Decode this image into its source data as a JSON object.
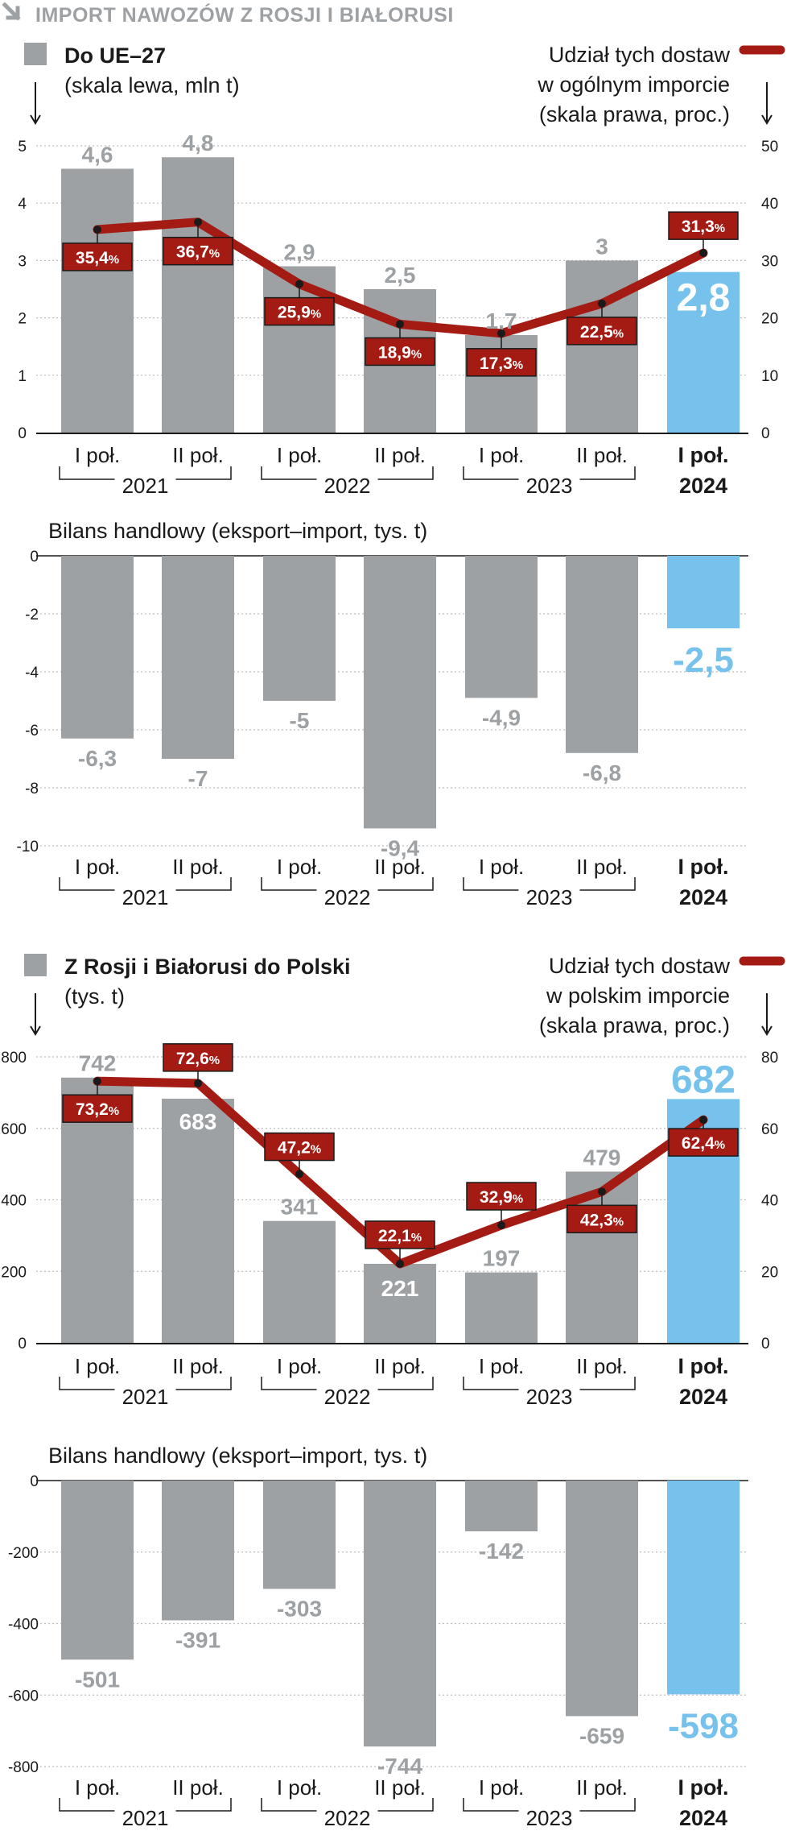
{
  "header": {
    "title": "IMPORT NAWOZÓW Z ROSJI I BIAŁORUSI"
  },
  "colors": {
    "bar": "#9da1a4",
    "bar_highlight": "#76c2ec",
    "line": "#a41b14",
    "label_gray": "#9da1a4",
    "label_blue": "#76c2ec",
    "grid": "#bdbdbd"
  },
  "x_labels": {
    "halves": [
      "I poł.",
      "II poł.",
      "I poł.",
      "II poł.",
      "I poł.",
      "II poł.",
      "I poł."
    ],
    "years": [
      "2021",
      "2022",
      "2023",
      "2024"
    ]
  },
  "chart_data": [
    {
      "type": "bar",
      "legend_bar": "Do UE–27",
      "legend_bar_sub": "(skala lewa, mln t)",
      "legend_line": [
        "Udział tych dostaw",
        "w ogólnym imporcie",
        "(skala prawa, proc.)"
      ],
      "categories": [
        "I poł. 2021",
        "II poł. 2021",
        "I poł. 2022",
        "II poł. 2022",
        "I poł. 2023",
        "II poł. 2023",
        "I poł. 2024"
      ],
      "values": [
        4.6,
        4.8,
        2.9,
        2.5,
        1.7,
        3,
        2.8
      ],
      "value_labels": [
        "4,6",
        "4,8",
        "2,9",
        "2,5",
        "1,7",
        "3",
        "2,8"
      ],
      "ylim": [
        0,
        5
      ],
      "yticks": [
        "0",
        "1",
        "2",
        "3",
        "4",
        "5"
      ],
      "line_series": {
        "values": [
          35.4,
          36.7,
          25.9,
          18.9,
          17.3,
          22.5,
          31.3
        ],
        "labels": [
          "35,4",
          "36,7",
          "25,9",
          "18,9",
          "17,3",
          "22,5",
          "31,3"
        ],
        "unit": "%",
        "ylim": [
          0,
          50
        ],
        "yticks": [
          "0",
          "10",
          "20",
          "30",
          "40",
          "50"
        ]
      }
    },
    {
      "type": "bar",
      "title": "Bilans handlowy (eksport–import, tys. t)",
      "categories": [
        "I poł. 2021",
        "II poł. 2021",
        "I poł. 2022",
        "II poł. 2022",
        "I poł. 2023",
        "II poł. 2023",
        "I poł. 2024"
      ],
      "values": [
        -6.3,
        -7,
        -5,
        -9.4,
        -4.9,
        -6.8,
        -2.5
      ],
      "value_labels": [
        "-6,3",
        "-7",
        "-5",
        "-9,4",
        "-4,9",
        "-6,8",
        "-2,5"
      ],
      "ylim": [
        -10,
        0
      ],
      "yticks": [
        "0",
        "-2",
        "-4",
        "-6",
        "-8",
        "-10"
      ]
    },
    {
      "type": "bar",
      "legend_bar": "Z Rosji i Białorusi do Polski",
      "legend_bar_sub": "(tys. t)",
      "legend_line": [
        "Udział tych dostaw",
        "w polskim imporcie",
        "(skala prawa, proc.)"
      ],
      "categories": [
        "I poł. 2021",
        "II poł. 2021",
        "I poł. 2022",
        "II poł. 2022",
        "I poł. 2023",
        "II poł. 2023",
        "I poł. 2024"
      ],
      "values": [
        742,
        683,
        341,
        221,
        197,
        479,
        682
      ],
      "value_labels": [
        "742",
        "683",
        "341",
        "221",
        "197",
        "479",
        "682"
      ],
      "ylim": [
        0,
        800
      ],
      "yticks": [
        "0",
        "200",
        "400",
        "600",
        "800"
      ],
      "line_series": {
        "values": [
          73.2,
          72.6,
          47.2,
          22.1,
          32.9,
          42.3,
          62.4
        ],
        "labels": [
          "73,2",
          "72,6",
          "47,2",
          "22,1",
          "32,9",
          "42,3",
          "62,4"
        ],
        "unit": "%",
        "ylim": [
          0,
          80
        ],
        "yticks": [
          "0",
          "20",
          "40",
          "60",
          "80"
        ]
      }
    },
    {
      "type": "bar",
      "title": "Bilans handlowy (eksport–import, tys. t)",
      "categories": [
        "I poł. 2021",
        "II poł. 2021",
        "I poł. 2022",
        "II poł. 2022",
        "I poł. 2023",
        "II poł. 2023",
        "I poł. 2024"
      ],
      "values": [
        -501,
        -391,
        -303,
        -744,
        -142,
        -659,
        -598
      ],
      "value_labels": [
        "-501",
        "-391",
        "-303",
        "-744",
        "-142",
        "-659",
        "-598"
      ],
      "ylim": [
        -800,
        0
      ],
      "yticks": [
        "0",
        "-200",
        "-400",
        "-600",
        "-800"
      ]
    }
  ]
}
